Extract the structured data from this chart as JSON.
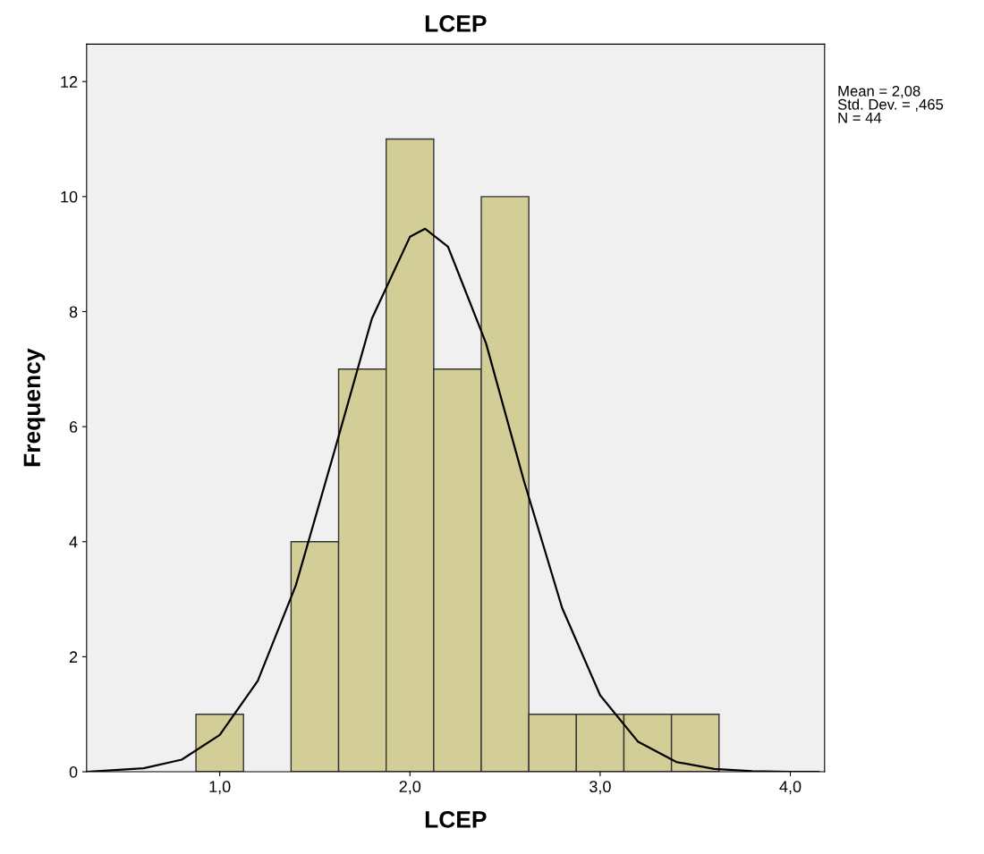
{
  "chart_data": {
    "type": "histogram",
    "title": "LCEP",
    "xlabel": "LCEP",
    "ylabel": "Frequency",
    "bins": [
      0.875,
      1.125,
      1.375,
      1.625,
      1.875,
      2.125,
      2.375,
      2.625,
      2.875,
      3.125,
      3.375,
      3.625
    ],
    "values": [
      1,
      0,
      4,
      7,
      11,
      7,
      10,
      1,
      1,
      1,
      1
    ],
    "color": "#d3ce97",
    "series": [
      {
        "type": "line",
        "color": "#000000",
        "x": [
          0.3,
          0.6,
          0.8,
          1.0,
          1.2,
          1.4,
          1.6,
          1.8,
          2.0,
          2.08,
          2.2,
          2.4,
          2.6,
          2.8,
          3.0,
          3.2,
          3.4,
          3.6,
          3.8,
          4.0,
          4.15
        ],
        "values": [
          0.0,
          0.06,
          0.21,
          0.64,
          1.58,
          3.24,
          5.54,
          7.88,
          9.3,
          9.44,
          9.13,
          7.45,
          5.05,
          2.85,
          1.33,
          0.52,
          0.17,
          0.05,
          0.01,
          0.0,
          0.0
        ]
      }
    ],
    "xlim": [
      0.3,
      4.18
    ],
    "ylim": [
      0,
      12.65
    ],
    "xticks": [
      {
        "value": 1,
        "label": "1,0"
      },
      {
        "value": 2,
        "label": "2,0"
      },
      {
        "value": 3,
        "label": "3,0"
      },
      {
        "value": 4,
        "label": "4,0"
      }
    ],
    "yticks": [
      0,
      2,
      4,
      6,
      8,
      10,
      12
    ],
    "grid": false,
    "line_style": "solid",
    "marker": "none",
    "annotations": [
      "Mean = 2,08\nStd. Dev. = ,465\nN = 44"
    ]
  }
}
